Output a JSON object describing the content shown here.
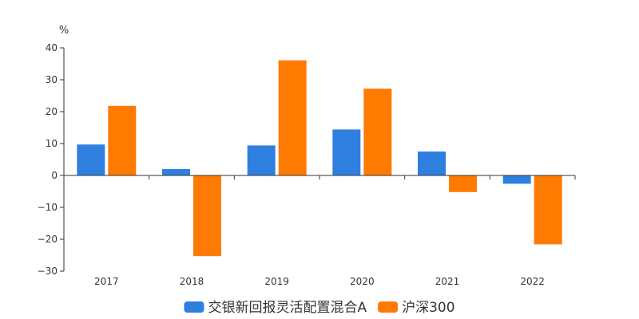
{
  "chart_data": {
    "type": "bar",
    "unit": "%",
    "categories": [
      "2017",
      "2018",
      "2019",
      "2020",
      "2021",
      "2022"
    ],
    "series": [
      {
        "name": "交银新回报灵活配置混合A",
        "color": "#2f7fe0",
        "values": [
          9.7,
          2.0,
          9.4,
          14.4,
          7.5,
          -2.6
        ]
      },
      {
        "name": "沪深300",
        "color": "#ff7a00",
        "values": [
          21.8,
          -25.3,
          36.1,
          27.2,
          -5.2,
          -21.6
        ]
      }
    ],
    "ylim": [
      -30,
      40
    ],
    "yticks": [
      "40",
      "30",
      "20",
      "10",
      "0",
      "−10",
      "−20",
      "−30"
    ],
    "legend_position": "bottom-center",
    "grid": false
  }
}
